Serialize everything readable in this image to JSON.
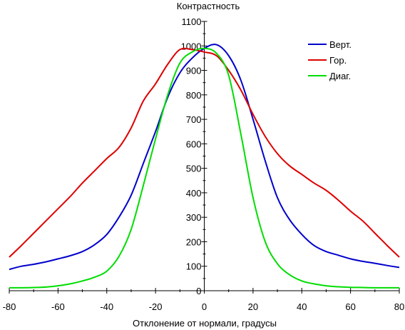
{
  "chart_data": {
    "type": "line",
    "title": "",
    "ylabel": "Контрастность",
    "xlabel": "Отклонение от нормали, градусы",
    "xlim": [
      -80,
      80
    ],
    "ylim": [
      0,
      1100
    ],
    "x_ticks": [
      -80,
      -60,
      -40,
      -20,
      0,
      20,
      40,
      60,
      80
    ],
    "y_ticks": [
      0,
      100,
      200,
      300,
      400,
      500,
      600,
      700,
      800,
      900,
      1000,
      1100
    ],
    "grid": false,
    "legend_position": "top-right",
    "x": [
      -80,
      -75,
      -70,
      -65,
      -60,
      -55,
      -50,
      -45,
      -40,
      -35,
      -30,
      -25,
      -20,
      -15,
      -10,
      -5,
      0,
      5,
      10,
      15,
      20,
      25,
      30,
      35,
      40,
      45,
      50,
      55,
      60,
      65,
      70,
      75,
      80
    ],
    "series": [
      {
        "name": "Верт.",
        "color": "#0000cc",
        "values": [
          87,
          100,
          108,
          118,
          130,
          143,
          160,
          188,
          230,
          300,
          390,
          520,
          650,
          790,
          890,
          950,
          990,
          1005,
          960,
          860,
          700,
          530,
          380,
          290,
          230,
          185,
          160,
          145,
          130,
          120,
          112,
          103,
          95
        ]
      },
      {
        "name": "Гор.",
        "color": "#dd0000",
        "values": [
          137,
          185,
          235,
          285,
          335,
          385,
          440,
          490,
          540,
          585,
          665,
          775,
          845,
          925,
          985,
          985,
          975,
          960,
          900,
          820,
          720,
          630,
          560,
          510,
          475,
          440,
          410,
          370,
          325,
          285,
          235,
          185,
          137
        ]
      },
      {
        "name": "Диаг.",
        "color": "#00dd00",
        "values": [
          12,
          12,
          13,
          15,
          20,
          28,
          40,
          55,
          80,
          140,
          250,
          430,
          620,
          800,
          930,
          975,
          990,
          970,
          880,
          640,
          380,
          200,
          110,
          65,
          40,
          28,
          20,
          16,
          14,
          13,
          12,
          12,
          12
        ]
      }
    ]
  }
}
